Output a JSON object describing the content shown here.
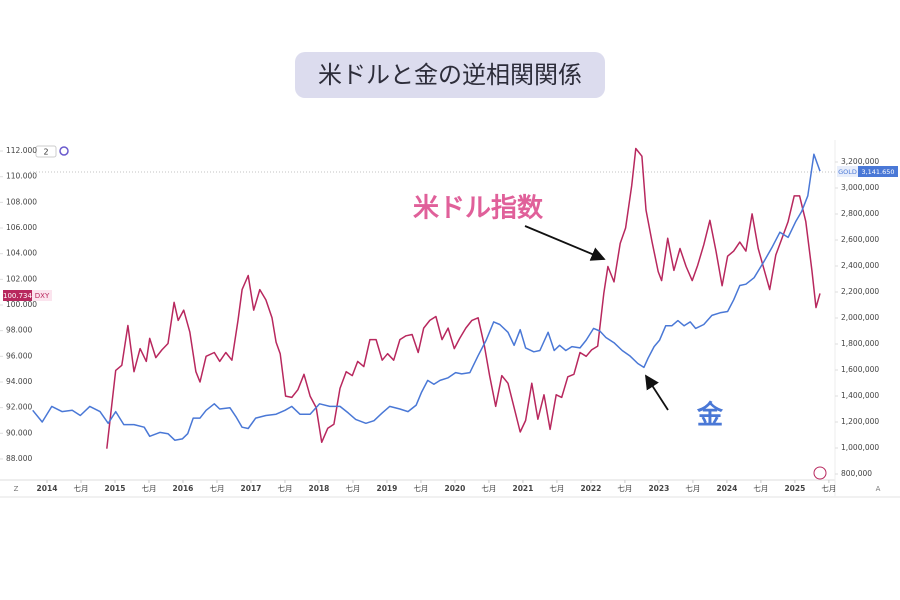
{
  "chart_data": {
    "type": "line",
    "title": "米ドルと金の逆相関関係",
    "annotations": [
      "米ドル指数",
      "金"
    ],
    "toolbar_labels": [
      "2",
      "Z",
      "A"
    ],
    "badges": {
      "left_value": "100.734",
      "left_name": "DXY",
      "right_name": "GOLD",
      "right_value": "3,141.650"
    },
    "xlim": [
      2013.75,
      2025.59
    ],
    "xticks": [
      {
        "value": 2014,
        "label": "2014"
      },
      {
        "value": 2014.5,
        "label": "七月"
      },
      {
        "value": 2015,
        "label": "2015"
      },
      {
        "value": 2015.5,
        "label": "七月"
      },
      {
        "value": 2016,
        "label": "2016"
      },
      {
        "value": 2016.5,
        "label": "七月"
      },
      {
        "value": 2017,
        "label": "2017"
      },
      {
        "value": 2017.5,
        "label": "七月"
      },
      {
        "value": 2018,
        "label": "2018"
      },
      {
        "value": 2018.5,
        "label": "七月"
      },
      {
        "value": 2019,
        "label": "2019"
      },
      {
        "value": 2019.5,
        "label": "七月"
      },
      {
        "value": 2020,
        "label": "2020"
      },
      {
        "value": 2020.5,
        "label": "七月"
      },
      {
        "value": 2021,
        "label": "2021"
      },
      {
        "value": 2021.5,
        "label": "七月"
      },
      {
        "value": 2022,
        "label": "2022"
      },
      {
        "value": 2022.5,
        "label": "七月"
      },
      {
        "value": 2023,
        "label": "2023"
      },
      {
        "value": 2023.5,
        "label": "七月"
      },
      {
        "value": 2024,
        "label": "2024"
      },
      {
        "value": 2024.5,
        "label": "七月"
      },
      {
        "value": 2025,
        "label": "2025"
      },
      {
        "value": 2025.5,
        "label": "七月"
      }
    ],
    "ylim": [
      86.36,
      112.47
    ],
    "yticks": [
      {
        "value": 88,
        "label": "88.000"
      },
      {
        "value": 90,
        "label": "90.000"
      },
      {
        "value": 92,
        "label": "92.000"
      },
      {
        "value": 94,
        "label": "94.000"
      },
      {
        "value": 96,
        "label": "96.000"
      },
      {
        "value": 98,
        "label": "98.000"
      },
      {
        "value": 100,
        "label": "100.000"
      },
      {
        "value": 102,
        "label": "102.000"
      },
      {
        "value": 104,
        "label": "104.000"
      },
      {
        "value": 106,
        "label": "106.000"
      },
      {
        "value": 108,
        "label": "108.000"
      },
      {
        "value": 110,
        "label": "110.000"
      },
      {
        "value": 112,
        "label": "112.000"
      }
    ],
    "y2lim": [
      754000,
      3330800
    ],
    "y2ticks": [
      {
        "value": 800000,
        "label": "800,000"
      },
      {
        "value": 1000000,
        "label": "1,000,000"
      },
      {
        "value": 1200000,
        "label": "1,200,000"
      },
      {
        "value": 1400000,
        "label": "1,400,000"
      },
      {
        "value": 1600000,
        "label": "1,600,000"
      },
      {
        "value": 1800000,
        "label": "1,800,000"
      },
      {
        "value": 2000000,
        "label": "2,000,000"
      },
      {
        "value": 2200000,
        "label": "2,200,000"
      },
      {
        "value": 2400000,
        "label": "2,400,000"
      },
      {
        "value": 2600000,
        "label": "2,600,000"
      },
      {
        "value": 2800000,
        "label": "2,800,000"
      },
      {
        "value": 3000000,
        "label": "3,000,000"
      },
      {
        "value": 3200000,
        "label": "3,200,000"
      }
    ],
    "series": [
      {
        "name": "DXY",
        "color": "#b8285e",
        "axis": "y",
        "x": [
          2014.88,
          2015.01,
          2015.1,
          2015.19,
          2015.28,
          2015.37,
          2015.46,
          2015.51,
          2015.6,
          2015.69,
          2015.78,
          2015.87,
          2015.93,
          2016.01,
          2016.1,
          2016.19,
          2016.25,
          2016.34,
          2016.46,
          2016.54,
          2016.63,
          2016.72,
          2016.81,
          2016.87,
          2016.96,
          2017.04,
          2017.13,
          2017.22,
          2017.31,
          2017.37,
          2017.43,
          2017.51,
          2017.6,
          2017.69,
          2017.78,
          2017.87,
          2017.96,
          2018.04,
          2018.13,
          2018.22,
          2018.31,
          2018.4,
          2018.49,
          2018.57,
          2018.66,
          2018.75,
          2018.84,
          2018.93,
          2019.01,
          2019.1,
          2019.19,
          2019.28,
          2019.37,
          2019.46,
          2019.54,
          2019.63,
          2019.72,
          2019.81,
          2019.9,
          2019.99,
          2020.07,
          2020.16,
          2020.25,
          2020.34,
          2020.43,
          2020.51,
          2020.6,
          2020.69,
          2020.78,
          2020.87,
          2020.96,
          2021.04,
          2021.13,
          2021.22,
          2021.31,
          2021.4,
          2021.49,
          2021.57,
          2021.66,
          2021.75,
          2021.84,
          2021.93,
          2022.01,
          2022.1,
          2022.19,
          2022.25,
          2022.34,
          2022.43,
          2022.51,
          2022.6,
          2022.66,
          2022.75,
          2022.81,
          2022.9,
          2022.99,
          2023.04,
          2023.13,
          2023.22,
          2023.31,
          2023.4,
          2023.49,
          2023.57,
          2023.66,
          2023.75,
          2023.84,
          2023.93,
          2024.01,
          2024.1,
          2024.19,
          2024.28,
          2024.37,
          2024.46,
          2024.54,
          2024.63,
          2024.72,
          2024.81,
          2024.9,
          2024.99,
          2025.07,
          2025.16,
          2025.25,
          2025.31,
          2025.37
        ],
        "values": [
          88.8,
          94.9,
          95.3,
          98.4,
          94.8,
          96.6,
          95.6,
          97.4,
          95.9,
          96.5,
          97.0,
          100.2,
          98.8,
          99.6,
          97.9,
          94.8,
          94.0,
          96.0,
          96.3,
          95.6,
          96.3,
          95.7,
          98.8,
          101.2,
          102.3,
          99.6,
          101.2,
          100.4,
          99.0,
          97.1,
          96.2,
          92.9,
          92.8,
          93.4,
          94.6,
          92.9,
          92.0,
          89.3,
          90.4,
          90.7,
          93.5,
          94.8,
          94.5,
          95.6,
          95.2,
          97.3,
          97.3,
          95.7,
          96.2,
          95.7,
          97.3,
          97.6,
          97.7,
          96.3,
          98.2,
          98.8,
          99.1,
          97.3,
          98.2,
          96.6,
          97.4,
          98.2,
          98.8,
          99.0,
          96.9,
          94.5,
          92.1,
          94.5,
          93.9,
          92.0,
          90.1,
          91.0,
          93.9,
          91.1,
          93.0,
          90.3,
          93.0,
          92.8,
          94.4,
          94.6,
          96.3,
          96.0,
          96.5,
          96.8,
          100.9,
          103.0,
          101.8,
          104.8,
          106.0,
          109.3,
          112.2,
          111.6,
          107.4,
          104.9,
          102.6,
          101.9,
          105.2,
          102.7,
          104.4,
          103.0,
          101.9,
          103.1,
          104.7,
          106.6,
          104.2,
          101.5,
          103.8,
          104.2,
          104.9,
          104.2,
          107.1,
          104.4,
          102.9,
          101.2,
          103.9,
          105.2,
          106.5,
          108.5,
          108.5,
          106.5,
          102.7,
          99.8,
          100.9
        ]
      },
      {
        "name": "GOLD",
        "color": "#4a78d6",
        "axis": "y2",
        "x": [
          2013.79,
          2013.93,
          2014.07,
          2014.22,
          2014.37,
          2014.49,
          2014.63,
          2014.78,
          2014.9,
          2015.01,
          2015.13,
          2015.28,
          2015.43,
          2015.51,
          2015.66,
          2015.78,
          2015.88,
          2015.99,
          2016.07,
          2016.15,
          2016.25,
          2016.34,
          2016.46,
          2016.54,
          2016.69,
          2016.78,
          2016.87,
          2016.96,
          2017.07,
          2017.22,
          2017.37,
          2017.5,
          2017.6,
          2017.72,
          2017.87,
          2018.01,
          2018.16,
          2018.31,
          2018.43,
          2018.54,
          2018.69,
          2018.81,
          2018.93,
          2019.04,
          2019.19,
          2019.31,
          2019.43,
          2019.51,
          2019.6,
          2019.69,
          2019.78,
          2019.9,
          2020.01,
          2020.1,
          2020.22,
          2020.34,
          2020.46,
          2020.57,
          2020.66,
          2020.78,
          2020.87,
          2020.96,
          2021.04,
          2021.16,
          2021.25,
          2021.37,
          2021.46,
          2021.54,
          2021.63,
          2021.72,
          2021.84,
          2021.93,
          2022.04,
          2022.13,
          2022.22,
          2022.34,
          2022.46,
          2022.57,
          2022.69,
          2022.78,
          2022.84,
          2022.93,
          2023.01,
          2023.1,
          2023.19,
          2023.28,
          2023.37,
          2023.46,
          2023.54,
          2023.66,
          2023.78,
          2023.9,
          2024.01,
          2024.1,
          2024.19,
          2024.28,
          2024.4,
          2024.54,
          2024.66,
          2024.78,
          2024.9,
          2025.01,
          2025.1,
          2025.19,
          2025.28,
          2025.37
        ],
        "values": [
          1290000,
          1200000,
          1320000,
          1280000,
          1290000,
          1250000,
          1320000,
          1280000,
          1190000,
          1280000,
          1180000,
          1180000,
          1160000,
          1090000,
          1120000,
          1110000,
          1060000,
          1070000,
          1110000,
          1230000,
          1230000,
          1290000,
          1340000,
          1300000,
          1310000,
          1240000,
          1160000,
          1150000,
          1230000,
          1250000,
          1260000,
          1290000,
          1320000,
          1260000,
          1260000,
          1340000,
          1320000,
          1320000,
          1270000,
          1220000,
          1190000,
          1210000,
          1270000,
          1320000,
          1300000,
          1280000,
          1330000,
          1430000,
          1520000,
          1490000,
          1520000,
          1540000,
          1580000,
          1570000,
          1580000,
          1710000,
          1830000,
          1970000,
          1950000,
          1890000,
          1790000,
          1910000,
          1770000,
          1740000,
          1750000,
          1890000,
          1750000,
          1790000,
          1750000,
          1780000,
          1770000,
          1830000,
          1920000,
          1900000,
          1850000,
          1810000,
          1750000,
          1710000,
          1650000,
          1620000,
          1690000,
          1780000,
          1830000,
          1940000,
          1940000,
          1980000,
          1940000,
          1970000,
          1920000,
          1950000,
          2020000,
          2040000,
          2050000,
          2140000,
          2250000,
          2260000,
          2310000,
          2430000,
          2540000,
          2660000,
          2620000,
          2740000,
          2820000,
          2940000,
          3260000,
          3130000
        ]
      }
    ]
  }
}
